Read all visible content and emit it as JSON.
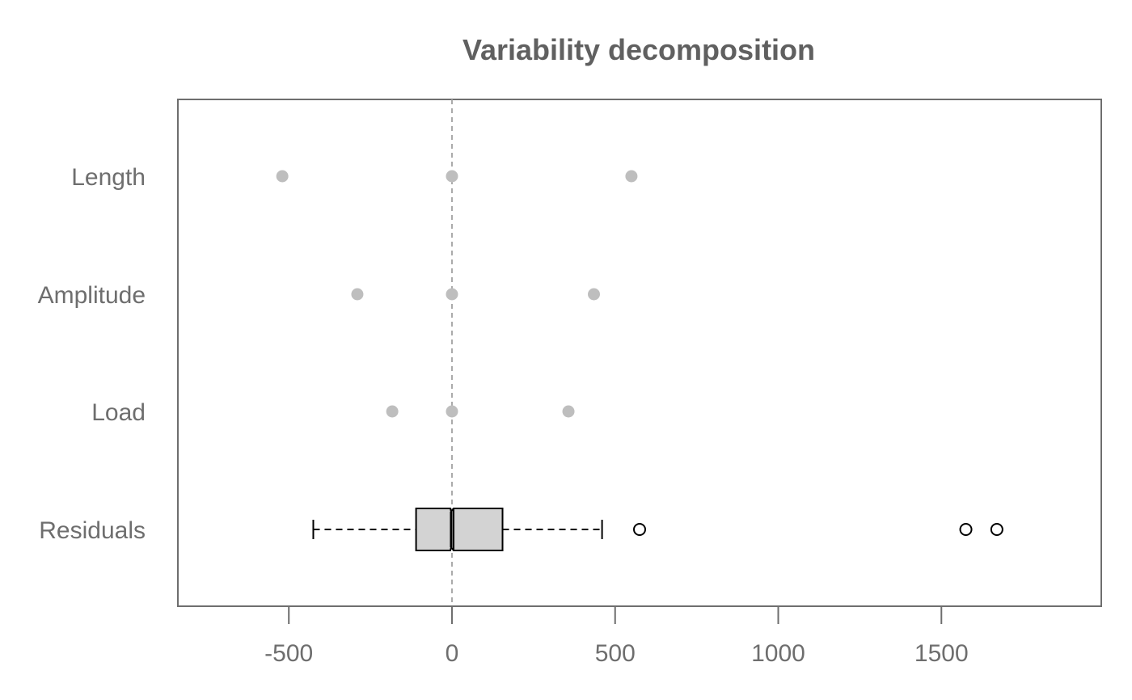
{
  "chart_data": {
    "type": "boxplot",
    "title": "Variability decomposition",
    "xlabel": "",
    "ylabel": "",
    "xlim": [
      -840,
      1990
    ],
    "x_ticks": [
      -500,
      0,
      500,
      1000,
      1500
    ],
    "x_tick_labels": [
      "-500",
      "0",
      "500",
      "1000",
      "1500"
    ],
    "reference_line": {
      "x": 0,
      "style": "dashed",
      "color": "#aaaaaa"
    },
    "categories": [
      "Length",
      "Amplitude",
      "Load",
      "Residuals"
    ],
    "effects": [
      {
        "name": "Length",
        "values": [
          -520,
          0,
          550
        ]
      },
      {
        "name": "Amplitude",
        "values": [
          -290,
          0,
          435
        ]
      },
      {
        "name": "Load",
        "values": [
          -183,
          0,
          357
        ]
      },
      {
        "name": "Residuals",
        "box": {
          "min": -425,
          "q1": -110,
          "median": 0,
          "q3": 155,
          "max": 460,
          "notch": [
            -5,
            5
          ]
        },
        "outliers": [
          575,
          1575,
          1670
        ]
      }
    ],
    "colors": {
      "points": "#bebebe",
      "box_fill": "#d3d3d3",
      "box_stroke": "#000000",
      "axis": "#6e6e6e",
      "text": "#6e6e6e"
    },
    "grid": false,
    "legend": "none"
  }
}
